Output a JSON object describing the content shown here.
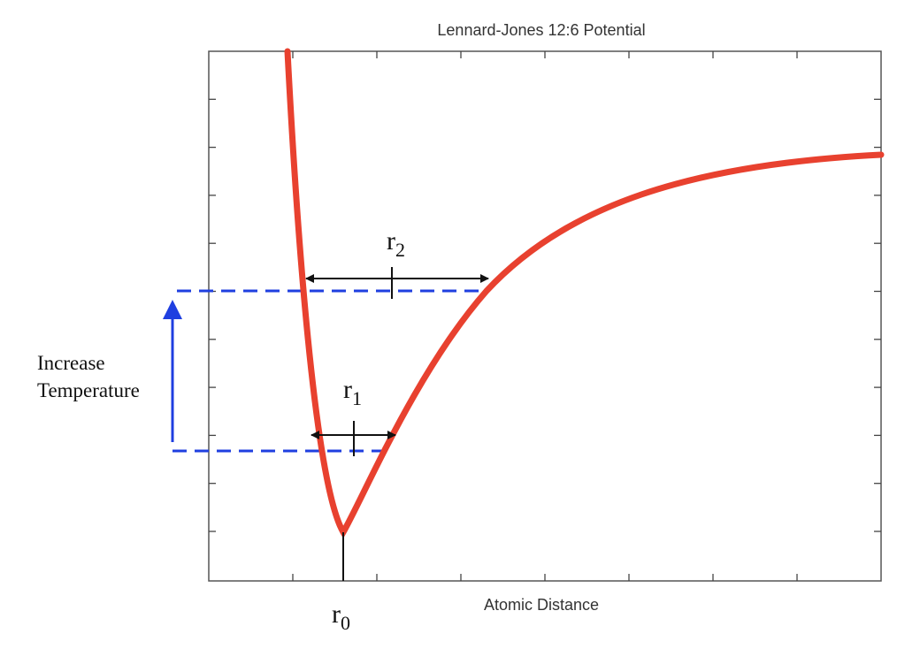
{
  "title": "Lennard-Jones 12:6 Potential",
  "x_axis_label": "Atomic Distance",
  "side_label": {
    "line1": "Increase",
    "line2": "Temperature"
  },
  "labels": {
    "r2": {
      "main": "r",
      "sub": "2"
    },
    "r1": {
      "main": "r",
      "sub": "1"
    },
    "r0": {
      "main": "r",
      "sub": "0"
    }
  }
}
